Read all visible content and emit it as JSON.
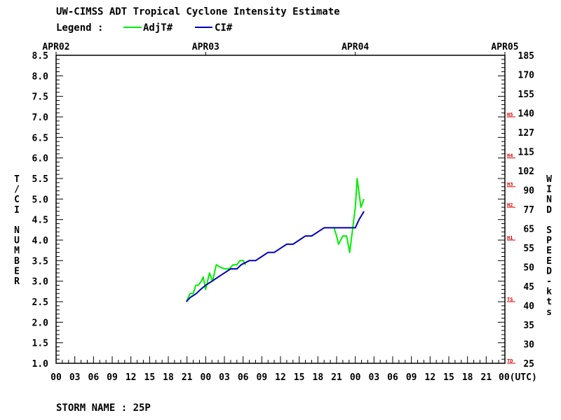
{
  "title": "UW-CIMSS ADT Tropical Cyclone Intensity Estimate",
  "legend": {
    "label": "Legend :",
    "entries": [
      {
        "name": "AdjT#",
        "color": "#00ee00"
      },
      {
        "name": "CI#",
        "color": "#0000bb"
      }
    ]
  },
  "storm_name": "STORM NAME : 25P",
  "left_axis_label": [
    "T",
    "/",
    "C",
    "I",
    "",
    "N",
    "U",
    "M",
    "B",
    "E",
    "R"
  ],
  "right_axis_label": [
    "W",
    "I",
    "N",
    "D",
    "",
    "S",
    "P",
    "E",
    "E",
    "D",
    "-",
    "k",
    "t",
    "s"
  ],
  "colors": {
    "adjt": "#00ee00",
    "ci": "#0000bb",
    "category_marks": "#e00000",
    "axes": "#000000",
    "background": "#ffffff"
  },
  "chart_data": {
    "type": "line",
    "title": "UW-CIMSS ADT Tropical Cyclone Intensity Estimate",
    "x_unit": "hours after APR02 00 UTC",
    "xlim": [
      0,
      72
    ],
    "date_labels": [
      {
        "label": "APR02",
        "hour": 0
      },
      {
        "label": "APR03",
        "hour": 24
      },
      {
        "label": "APR04",
        "hour": 48
      },
      {
        "label": "APR05",
        "hour": 72
      }
    ],
    "x_tick_labels": [
      "00",
      "03",
      "06",
      "09",
      "12",
      "15",
      "18",
      "21",
      "00",
      "03",
      "06",
      "09",
      "12",
      "15",
      "18",
      "21",
      "00",
      "03",
      "06",
      "09",
      "12",
      "15",
      "18",
      "21",
      "00(UTC)"
    ],
    "ylabel_left": "T/CI NUMBER",
    "ylim": [
      1.0,
      8.5
    ],
    "y_ticks": [
      "1.0",
      "1.5",
      "2.0",
      "2.5",
      "3.0",
      "3.5",
      "4.0",
      "4.5",
      "5.0",
      "5.5",
      "6.0",
      "6.5",
      "7.0",
      "7.5",
      "8.0",
      "8.5"
    ],
    "ylabel_right": "WIND SPEED-kts",
    "right_ticks": [
      "25",
      "30",
      "35",
      "40",
      "45",
      "50",
      "55",
      "65",
      "77",
      "90",
      "102",
      "115",
      "127",
      "140",
      "155",
      "170",
      "185"
    ],
    "category_marks": [
      {
        "label": "TD",
        "value": 1.0
      },
      {
        "label": "TS",
        "value": 2.5
      },
      {
        "label": "H1",
        "value": 4.0
      },
      {
        "label": "H2",
        "value": 4.8
      },
      {
        "label": "H3",
        "value": 5.3
      },
      {
        "label": "H4",
        "value": 6.0
      },
      {
        "label": "H5",
        "value": 7.0
      }
    ],
    "series": [
      {
        "name": "AdjT#",
        "color": "#00ee00",
        "segments": [
          [
            [
              20.9,
              2.5
            ],
            [
              21.2,
              2.6
            ],
            [
              21.5,
              2.7
            ],
            [
              22.0,
              2.7
            ],
            [
              22.4,
              2.9
            ],
            [
              22.8,
              2.9
            ],
            [
              23.3,
              3.0
            ],
            [
              23.6,
              3.1
            ],
            [
              24.0,
              2.8
            ],
            [
              24.3,
              3.0
            ],
            [
              24.6,
              3.2
            ],
            [
              25.1,
              3.0
            ],
            [
              25.7,
              3.4
            ],
            [
              26.2,
              3.35
            ],
            [
              27.0,
              3.3
            ],
            [
              27.8,
              3.3
            ],
            [
              28.4,
              3.4
            ],
            [
              29.0,
              3.4
            ],
            [
              29.5,
              3.5
            ],
            [
              30.0,
              3.5
            ],
            [
              30.4,
              3.4
            ]
          ],
          [
            [
              44.6,
              4.3
            ],
            [
              45.0,
              4.1
            ],
            [
              45.3,
              3.9
            ],
            [
              46.0,
              4.1
            ],
            [
              46.6,
              4.1
            ],
            [
              47.1,
              3.7
            ],
            [
              48.0,
              4.8
            ],
            [
              48.3,
              5.5
            ],
            [
              48.9,
              4.8
            ],
            [
              49.4,
              5.0
            ]
          ]
        ]
      },
      {
        "name": "CI#",
        "color": "#0000bb",
        "points": [
          [
            20.9,
            2.5
          ],
          [
            21.5,
            2.6
          ],
          [
            22.5,
            2.7
          ],
          [
            23.2,
            2.8
          ],
          [
            24.0,
            2.9
          ],
          [
            25.0,
            3.0
          ],
          [
            26.0,
            3.1
          ],
          [
            27.0,
            3.2
          ],
          [
            28.0,
            3.3
          ],
          [
            29.0,
            3.3
          ],
          [
            29.7,
            3.4
          ],
          [
            31.0,
            3.5
          ],
          [
            32.0,
            3.5
          ],
          [
            33.0,
            3.6
          ],
          [
            34.0,
            3.7
          ],
          [
            35.0,
            3.7
          ],
          [
            36.0,
            3.8
          ],
          [
            37.0,
            3.9
          ],
          [
            38.0,
            3.9
          ],
          [
            39.0,
            4.0
          ],
          [
            40.0,
            4.1
          ],
          [
            41.0,
            4.1
          ],
          [
            42.0,
            4.2
          ],
          [
            43.0,
            4.3
          ],
          [
            44.0,
            4.3
          ],
          [
            45.0,
            4.3
          ],
          [
            46.0,
            4.3
          ],
          [
            47.0,
            4.3
          ],
          [
            48.0,
            4.3
          ],
          [
            48.6,
            4.5
          ],
          [
            49.4,
            4.7
          ]
        ]
      }
    ],
    "grid": false,
    "legend_position": "top-left"
  }
}
